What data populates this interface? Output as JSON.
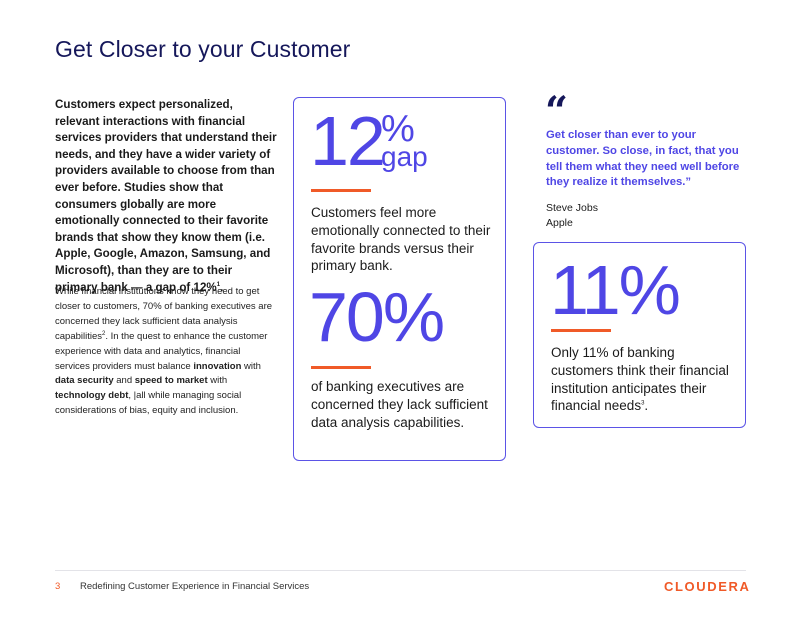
{
  "title": "Get Closer to your Customer",
  "intro": "Customers expect personalized, relevant interactions with financial services providers that understand their needs, and they have a wider variety of providers available to choose from than ever before. Studies show that consumers globally are more emotionally connected to their favorite brands that show they know them (i.e. Apple, Google, Amazon, Samsung, and Microsoft), than they are to their primary bank — a gap of 12%",
  "intro_sup": "1",
  "body": {
    "p1": "While financial institutions know they need to get closer to customers, 70% of banking executives are concerned they lack sufficient data analysis capabilities",
    "sup2": "2",
    "p2": ". In the quest to enhance the customer experience with data and analytics, financial services providers must balance ",
    "innovation": "innovation",
    "with1": " with ",
    "data_security": "data security",
    "and": " and ",
    "speed": "speed to market",
    "with2": " with ",
    "tech_debt": "technology debt",
    "p3": ", |all while managing social considerations of bias, equity and inclusion."
  },
  "card_a": {
    "stat1_number": "12",
    "stat1_pct": "%",
    "stat1_gap": "gap",
    "stat1_text": "Customers feel more emotionally connected to their favorite brands versus their primary bank.",
    "stat2_number": "70%",
    "stat2_text": "of banking executives are concerned they lack sufficient data analysis capabilities."
  },
  "quote": {
    "mark": "“",
    "text": "Get closer than ever to your customer. So close, in fact, that you tell them what they need well before they realize it themselves.”",
    "author": "Steve Jobs",
    "org": "Apple"
  },
  "card_b": {
    "stat_number": "11%",
    "stat_text": "Only 11% of banking customers think their financial institution anticipates their financial needs",
    "stat_sup": "3",
    "stat_end": "."
  },
  "footer": {
    "page_number": "3",
    "doc_title": "Redefining Customer Experience in Financial Services",
    "logo": "CLOUDERA"
  },
  "colors": {
    "accent_purple": "#4f46e5",
    "accent_orange": "#f05a28",
    "title_navy": "#15175a"
  }
}
